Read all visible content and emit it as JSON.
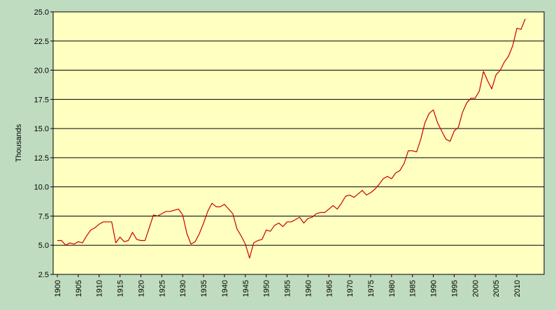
{
  "chart_data": {
    "type": "line",
    "title": "",
    "xlabel": "",
    "ylabel": "Thousands",
    "xlim": [
      1900,
      2012
    ],
    "ylim": [
      2.5,
      25.0
    ],
    "grid": true,
    "x_ticks": [
      1900,
      1905,
      1910,
      1915,
      1920,
      1925,
      1930,
      1935,
      1940,
      1945,
      1950,
      1955,
      1960,
      1965,
      1970,
      1975,
      1980,
      1985,
      1990,
      1995,
      2000,
      2005,
      2010
    ],
    "y_ticks": [
      2.5,
      5.0,
      7.5,
      10.0,
      12.5,
      15.0,
      17.5,
      20.0,
      22.5,
      25.0
    ],
    "colors": {
      "line": "#cc0000",
      "plot_background": "#ffffc0",
      "grid": "#000000",
      "page_background": "#c0dcc0"
    },
    "series": [
      {
        "x": [
          1900,
          1901,
          1902,
          1903,
          1904,
          1905,
          1906,
          1907,
          1908,
          1909,
          1910,
          1911,
          1912,
          1913,
          1914,
          1915,
          1916,
          1917,
          1918,
          1919,
          1920,
          1921,
          1922,
          1923,
          1924,
          1925,
          1926,
          1927,
          1928,
          1929,
          1930,
          1931,
          1932,
          1933,
          1934,
          1935,
          1936,
          1937,
          1938,
          1939,
          1940,
          1941,
          1942,
          1943,
          1944,
          1945,
          1946,
          1947,
          1948,
          1949,
          1950,
          1951,
          1952,
          1953,
          1954,
          1955,
          1956,
          1957,
          1958,
          1959,
          1960,
          1961,
          1962,
          1963,
          1964,
          1965,
          1966,
          1967,
          1968,
          1969,
          1970,
          1971,
          1972,
          1973,
          1974,
          1975,
          1976,
          1977,
          1978,
          1979,
          1980,
          1981,
          1982,
          1983,
          1984,
          1985,
          1986,
          1987,
          1988,
          1989,
          1990,
          1991,
          1992,
          1993,
          1994,
          1995,
          1996,
          1997,
          1998,
          1999,
          2000,
          2001,
          2002,
          2003,
          2004,
          2005,
          2006,
          2007,
          2008,
          2009,
          2010,
          2011,
          2012
        ],
        "values": [
          5.4,
          5.4,
          5.0,
          5.2,
          5.1,
          5.3,
          5.2,
          5.8,
          6.3,
          6.5,
          6.8,
          7.0,
          7.0,
          7.0,
          5.2,
          5.7,
          5.3,
          5.4,
          6.1,
          5.5,
          5.4,
          5.4,
          6.5,
          7.6,
          7.5,
          7.7,
          7.9,
          7.9,
          8.0,
          8.1,
          7.6,
          6.0,
          5.1,
          5.3,
          6.0,
          6.9,
          7.9,
          8.6,
          8.3,
          8.3,
          8.5,
          8.1,
          7.7,
          6.4,
          5.8,
          5.1,
          3.9,
          5.2,
          5.4,
          5.5,
          6.3,
          6.2,
          6.7,
          6.9,
          6.6,
          7.0,
          7.0,
          7.2,
          7.4,
          6.9,
          7.3,
          7.4,
          7.7,
          7.8,
          7.8,
          8.1,
          8.4,
          8.1,
          8.6,
          9.2,
          9.3,
          9.1,
          9.4,
          9.7,
          9.3,
          9.5,
          9.8,
          10.2,
          10.7,
          10.9,
          10.7,
          11.2,
          11.4,
          12.0,
          13.1,
          13.1,
          13.0,
          14.1,
          15.5,
          16.3,
          16.6,
          15.5,
          14.8,
          14.1,
          13.9,
          14.8,
          15.1,
          16.4,
          17.2,
          17.6,
          17.6,
          18.2,
          19.9,
          19.1,
          18.4,
          19.6,
          20.0,
          20.7,
          21.2,
          22.1,
          23.6,
          23.5,
          24.4
        ]
      }
    ]
  }
}
